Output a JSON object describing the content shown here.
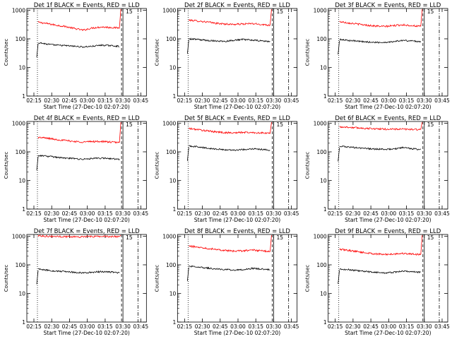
{
  "chart_data": [
    {
      "type": "line",
      "title": "Det 1f BLACK = Events, RED = LLD",
      "xlabel": "Start Time (27-Dec-10 02:07:20)",
      "ylabel": "Counts/sec",
      "yscale": "log",
      "ylim": [
        1,
        1000
      ],
      "x_ticks": [
        "02:15",
        "02:30",
        "02:45",
        "03:00",
        "03:15",
        "03:30",
        "03:45"
      ],
      "y_ticks": [
        "1",
        "10",
        "100",
        "1000"
      ],
      "annotation": "15",
      "series": [
        {
          "color": "#ff0000",
          "values": [
            380,
            340,
            300,
            270,
            230,
            200,
            240,
            260,
            250,
            240
          ]
        },
        {
          "color": "#000000",
          "values": [
            75,
            65,
            60,
            58,
            55,
            52,
            55,
            60,
            58,
            55
          ]
        }
      ]
    },
    {
      "type": "line",
      "title": "Det 2f BLACK = Events, RED = LLD",
      "xlabel": "Start Time (27-Dec-10 02:07:20)",
      "ylabel": "Counts/sec",
      "yscale": "log",
      "ylim": [
        1,
        1000
      ],
      "x_ticks": [
        "02:15",
        "02:30",
        "02:45",
        "03:00",
        "03:15",
        "03:30",
        "03:45"
      ],
      "y_ticks": [
        "1",
        "10",
        "100",
        "1000"
      ],
      "annotation": "15",
      "series": [
        {
          "color": "#ff0000",
          "values": [
            450,
            420,
            390,
            350,
            330,
            320,
            330,
            340,
            320,
            300
          ]
        },
        {
          "color": "#000000",
          "values": [
            100,
            95,
            88,
            85,
            82,
            90,
            95,
            90,
            85,
            80
          ]
        }
      ]
    },
    {
      "type": "line",
      "title": "Det 3f BLACK = Events, RED = LLD",
      "xlabel": "Start Time (27-Dec-10 02:07:20)",
      "ylabel": "Counts/sec",
      "yscale": "log",
      "ylim": [
        1,
        1000
      ],
      "x_ticks": [
        "02:15",
        "02:30",
        "02:45",
        "03:00",
        "03:15",
        "03:30",
        "03:45"
      ],
      "y_ticks": [
        "1",
        "10",
        "100",
        "1000"
      ],
      "annotation": "15",
      "series": [
        {
          "color": "#ff0000",
          "values": [
            400,
            360,
            330,
            300,
            280,
            270,
            290,
            310,
            290,
            270
          ]
        },
        {
          "color": "#000000",
          "values": [
            95,
            88,
            82,
            78,
            75,
            75,
            80,
            88,
            85,
            80
          ]
        }
      ]
    },
    {
      "type": "line",
      "title": "Det 4f BLACK = Events, RED = LLD",
      "xlabel": "Start Time (27-Dec-10 02:07:20)",
      "ylabel": "Counts/sec",
      "yscale": "log",
      "ylim": [
        1,
        1000
      ],
      "x_ticks": [
        "02:15",
        "02:30",
        "02:45",
        "03:00",
        "03:15",
        "03:30",
        "03:45"
      ],
      "y_ticks": [
        "1",
        "10",
        "100",
        "1000"
      ],
      "annotation": "15",
      "series": [
        {
          "color": "#ff0000",
          "values": [
            320,
            300,
            270,
            250,
            230,
            220,
            230,
            230,
            220,
            210
          ]
        },
        {
          "color": "#000000",
          "values": [
            75,
            70,
            65,
            60,
            58,
            55,
            58,
            60,
            58,
            55
          ]
        }
      ]
    },
    {
      "type": "line",
      "title": "Det 5f BLACK = Events, RED = LLD",
      "xlabel": "Start Time (27-Dec-10 02:07:20)",
      "ylabel": "Counts/sec",
      "yscale": "log",
      "ylim": [
        1,
        1000
      ],
      "x_ticks": [
        "02:15",
        "02:30",
        "02:45",
        "03:00",
        "03:15",
        "03:30",
        "03:45"
      ],
      "y_ticks": [
        "1",
        "10",
        "100",
        "1000"
      ],
      "annotation": "15",
      "series": [
        {
          "color": "#ff0000",
          "values": [
            650,
            600,
            540,
            500,
            470,
            460,
            480,
            470,
            460,
            440
          ]
        },
        {
          "color": "#000000",
          "values": [
            160,
            150,
            135,
            125,
            118,
            115,
            120,
            128,
            122,
            115
          ]
        }
      ]
    },
    {
      "type": "line",
      "title": "Det 6f BLACK = Events, RED = LLD",
      "xlabel": "Start Time (27-Dec-10 02:07:20)",
      "ylabel": "Counts/sec",
      "yscale": "log",
      "ylim": [
        1,
        1000
      ],
      "x_ticks": [
        "02:15",
        "02:30",
        "02:45",
        "03:00",
        "03:15",
        "03:30",
        "03:45"
      ],
      "y_ticks": [
        "1",
        "10",
        "100",
        "1000"
      ],
      "annotation": "15",
      "series": [
        {
          "color": "#ff0000",
          "values": [
            750,
            720,
            690,
            660,
            640,
            620,
            620,
            620,
            610,
            600
          ]
        },
        {
          "color": "#000000",
          "values": [
            155,
            148,
            138,
            130,
            125,
            122,
            125,
            140,
            130,
            120
          ]
        }
      ]
    },
    {
      "type": "line",
      "title": "Det 7f BLACK = Events, RED = LLD",
      "xlabel": "Start Time (27-Dec-10 02:07:20)",
      "ylabel": "Counts/sec",
      "yscale": "log",
      "ylim": [
        1,
        1000
      ],
      "x_ticks": [
        "02:15",
        "02:30",
        "02:45",
        "03:00",
        "03:15",
        "03:30",
        "03:45"
      ],
      "y_ticks": [
        "1",
        "10",
        "100",
        "1000"
      ],
      "annotation": "15",
      "series": [
        {
          "color": "#ff0000",
          "values": [
            1050,
            1000,
            980,
            970,
            960,
            960,
            980,
            990,
            980,
            970
          ]
        },
        {
          "color": "#000000",
          "values": [
            70,
            65,
            60,
            58,
            55,
            52,
            55,
            58,
            56,
            52
          ]
        }
      ]
    },
    {
      "type": "line",
      "title": "Det 8f BLACK = Events, RED = LLD",
      "xlabel": "Start Time (27-Dec-10 02:07:20)",
      "ylabel": "Counts/sec",
      "yscale": "log",
      "ylim": [
        1,
        1000
      ],
      "x_ticks": [
        "02:15",
        "02:30",
        "02:45",
        "03:00",
        "03:15",
        "03:30",
        "03:45"
      ],
      "y_ticks": [
        "1",
        "10",
        "100",
        "1000"
      ],
      "annotation": "15",
      "series": [
        {
          "color": "#ff0000",
          "values": [
            450,
            420,
            380,
            350,
            320,
            300,
            310,
            330,
            310,
            290
          ]
        },
        {
          "color": "#000000",
          "values": [
            90,
            85,
            78,
            72,
            68,
            66,
            68,
            75,
            72,
            68
          ]
        }
      ]
    },
    {
      "type": "line",
      "title": "Det 9f BLACK = Events, RED = LLD",
      "xlabel": "Start Time (27-Dec-10 02:07:20)",
      "ylabel": "Counts/sec",
      "yscale": "log",
      "ylim": [
        1,
        1000
      ],
      "x_ticks": [
        "02:15",
        "02:30",
        "02:45",
        "03:00",
        "03:15",
        "03:30",
        "03:45"
      ],
      "y_ticks": [
        "1",
        "10",
        "100",
        "1000"
      ],
      "annotation": "15",
      "series": [
        {
          "color": "#ff0000",
          "values": [
            350,
            320,
            290,
            260,
            240,
            230,
            240,
            250,
            240,
            230
          ]
        },
        {
          "color": "#000000",
          "values": [
            72,
            68,
            62,
            58,
            55,
            52,
            55,
            60,
            58,
            55
          ]
        }
      ]
    }
  ]
}
